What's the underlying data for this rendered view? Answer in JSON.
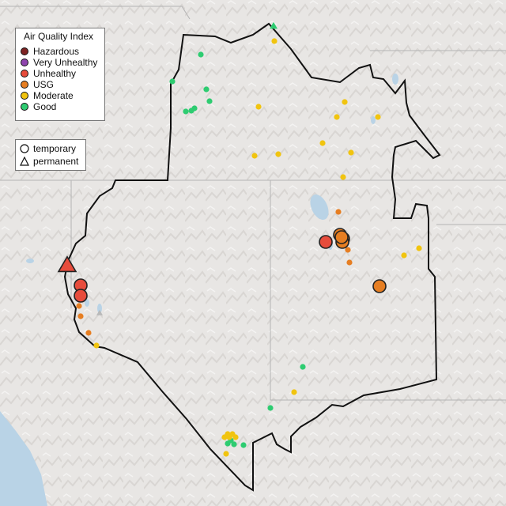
{
  "legend": {
    "title": "Air Quality Index",
    "categories": [
      {
        "label": "Hazardous",
        "color": "#7e2323"
      },
      {
        "label": "Very Unhealthy",
        "color": "#8e44ad"
      },
      {
        "label": "Unhealthy",
        "color": "#e74c3c"
      },
      {
        "label": "USG",
        "color": "#e67e22"
      },
      {
        "label": "Moderate",
        "color": "#f1c40f"
      },
      {
        "label": "Good",
        "color": "#2ecc71"
      }
    ]
  },
  "type_legend": {
    "temporary_label": "temporary",
    "permanent_label": "permanent"
  },
  "map": {
    "background_color": "#e6e4e2",
    "water_color": "#b9d3e6",
    "boundary_color": "#111111",
    "monitors_by_category": {
      "Unhealthy": {
        "temporary": 5,
        "permanent": 1
      },
      "USG": {
        "temporary": 12,
        "permanent": 0
      },
      "Moderate": {
        "temporary": 20,
        "permanent": 0
      },
      "Good": {
        "temporary": 13,
        "permanent": 1
      }
    }
  }
}
